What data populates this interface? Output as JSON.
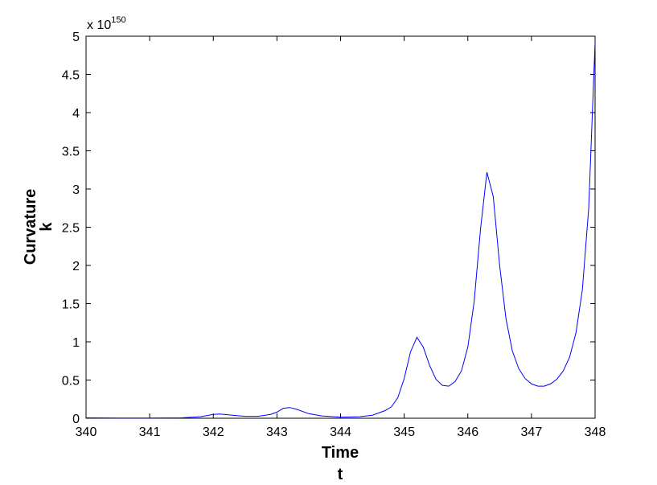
{
  "chart_data": {
    "type": "line",
    "y_multiplier": {
      "base": "x 10",
      "exponent": "150"
    },
    "xlabel": [
      "Time",
      "t"
    ],
    "ylabel": [
      "Curvature",
      "k"
    ],
    "series": [
      {
        "color": "#0000ff",
        "x": [
          340,
          340.5,
          341,
          341.5,
          341.8,
          342,
          342.1,
          342.3,
          342.5,
          342.7,
          342.9,
          343,
          343.1,
          343.2,
          343.3,
          343.5,
          343.7,
          344,
          344.3,
          344.5,
          344.6,
          344.7,
          344.8,
          344.9,
          345,
          345.1,
          345.2,
          345.3,
          345.4,
          345.5,
          345.6,
          345.7,
          345.8,
          345.9,
          346,
          346.1,
          346.2,
          346.3,
          346.4,
          346.5,
          346.6,
          346.7,
          346.8,
          346.9,
          347,
          347.1,
          347.2,
          347.3,
          347.4,
          347.5,
          347.6,
          347.7,
          347.8,
          347.9,
          348
        ],
        "values": [
          0.005,
          0.003,
          0.002,
          0.005,
          0.02,
          0.05,
          0.055,
          0.04,
          0.025,
          0.025,
          0.05,
          0.08,
          0.13,
          0.14,
          0.12,
          0.06,
          0.03,
          0.015,
          0.02,
          0.04,
          0.07,
          0.1,
          0.15,
          0.27,
          0.52,
          0.87,
          1.06,
          0.93,
          0.69,
          0.51,
          0.43,
          0.42,
          0.48,
          0.62,
          0.93,
          1.53,
          2.48,
          3.22,
          2.9,
          2.0,
          1.3,
          0.88,
          0.65,
          0.52,
          0.45,
          0.42,
          0.42,
          0.45,
          0.51,
          0.62,
          0.8,
          1.12,
          1.68,
          2.75,
          4.92
        ]
      }
    ],
    "xlim": [
      340,
      348
    ],
    "xticks": [
      340,
      341,
      342,
      343,
      344,
      345,
      346,
      347,
      348
    ],
    "ylim": [
      0,
      5
    ],
    "yticks": [
      0,
      0.5,
      1,
      1.5,
      2,
      2.5,
      3,
      3.5,
      4,
      4.5,
      5
    ],
    "grid": false
  }
}
